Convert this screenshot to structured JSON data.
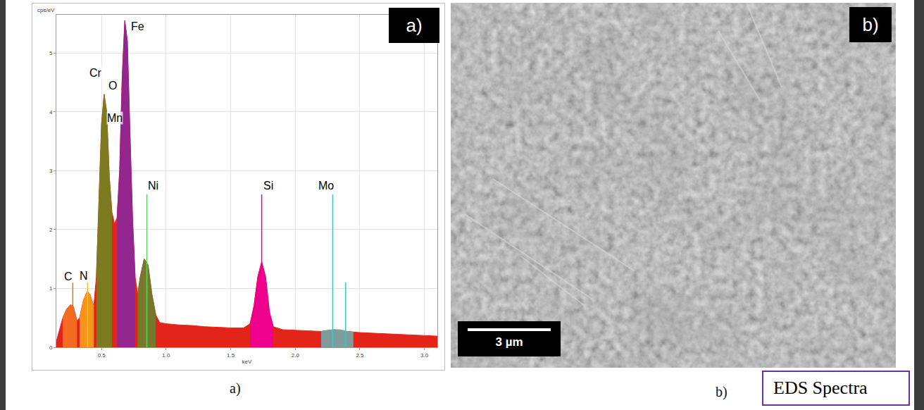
{
  "chart_data": {
    "type": "area",
    "x_title": "keV",
    "y_title": "cps/eV",
    "xlim": [
      0.15,
      3.1
    ],
    "ylim": [
      0,
      5.65
    ],
    "xticks": [
      0.5,
      {
        "value": 1,
        "label": "1.0"
      },
      1.5,
      {
        "value": 2,
        "label": "2.0"
      },
      2.5,
      {
        "value": 3,
        "label": "3.0"
      }
    ],
    "yticks": [
      0,
      1,
      2,
      3,
      4,
      5
    ],
    "grid": true,
    "tick_labels": true,
    "color": "#e3241b",
    "x": [
      0.15,
      0.18,
      0.2,
      0.23,
      0.26,
      0.28,
      0.31,
      0.33,
      0.36,
      0.39,
      0.41,
      0.44,
      0.46,
      0.48,
      0.5,
      0.52,
      0.54,
      0.56,
      0.58,
      0.6,
      0.62,
      0.64,
      0.66,
      0.68,
      0.7,
      0.72,
      0.74,
      0.76,
      0.78,
      0.8,
      0.83,
      0.86,
      0.89,
      0.92,
      0.95,
      1.0,
      1.1,
      1.2,
      1.3,
      1.4,
      1.5,
      1.6,
      1.65,
      1.68,
      1.71,
      1.74,
      1.77,
      1.8,
      1.83,
      1.9,
      2.0,
      2.1,
      2.2,
      2.3,
      2.4,
      2.5,
      2.6,
      2.7,
      2.8,
      2.9,
      3.0,
      3.1
    ],
    "values": [
      0.1,
      0.35,
      0.5,
      0.65,
      0.72,
      0.7,
      0.45,
      0.5,
      0.8,
      0.95,
      0.9,
      0.7,
      1.2,
      2.5,
      3.8,
      4.3,
      4.0,
      2.9,
      2.3,
      2.1,
      2.2,
      3.0,
      4.6,
      5.55,
      5.2,
      3.6,
      2.2,
      1.2,
      0.9,
      1.2,
      1.5,
      1.4,
      0.9,
      0.55,
      0.42,
      0.4,
      0.38,
      0.37,
      0.35,
      0.34,
      0.33,
      0.33,
      0.4,
      0.7,
      1.2,
      1.45,
      1.2,
      0.6,
      0.35,
      0.3,
      0.29,
      0.28,
      0.27,
      0.3,
      0.27,
      0.25,
      0.24,
      0.23,
      0.22,
      0.21,
      0.2,
      0.19
    ],
    "series": [
      {
        "color": "#f36c21",
        "x": [
          0.2,
          0.23,
          0.26,
          0.28,
          0.31
        ],
        "values": [
          0.5,
          0.65,
          0.72,
          0.7,
          0.45
        ]
      },
      {
        "color": "#f7941d",
        "x": [
          0.33,
          0.36,
          0.39,
          0.41,
          0.44
        ],
        "values": [
          0.5,
          0.8,
          0.95,
          0.9,
          0.7
        ]
      },
      {
        "color": "#7d7b1f",
        "x": [
          0.46,
          0.48,
          0.5,
          0.52,
          0.54,
          0.56,
          0.58
        ],
        "values": [
          1.2,
          2.5,
          3.8,
          4.3,
          4.0,
          2.9,
          2.3
        ]
      },
      {
        "color": "#93278f",
        "x": [
          0.62,
          0.64,
          0.66,
          0.68,
          0.7,
          0.72,
          0.74,
          0.76
        ],
        "values": [
          2.2,
          3.0,
          4.6,
          5.55,
          5.2,
          3.6,
          2.2,
          1.2
        ]
      },
      {
        "color": "#76782a",
        "x": [
          0.78,
          0.8,
          0.83,
          0.86,
          0.89,
          0.92
        ],
        "values": [
          0.9,
          1.2,
          1.5,
          1.4,
          0.9,
          0.55
        ]
      },
      {
        "color": "#ec008c",
        "x": [
          1.65,
          1.68,
          1.71,
          1.74,
          1.77,
          1.8,
          1.83
        ],
        "values": [
          0.4,
          0.7,
          1.2,
          1.45,
          1.2,
          0.6,
          0.35
        ]
      },
      {
        "color": "#7f9c9a",
        "x": [
          2.2,
          2.25,
          2.3,
          2.35,
          2.4,
          2.45
        ],
        "values": [
          0.27,
          0.29,
          0.3,
          0.3,
          0.27,
          0.26
        ]
      }
    ],
    "lines": [
      {
        "x": 0.277,
        "y": 1.1,
        "color": "#f36c21"
      },
      {
        "x": 0.392,
        "y": 1.1,
        "color": "#f7c21d"
      },
      {
        "x": 0.851,
        "y": 2.6,
        "color": "#5cd65c"
      },
      {
        "x": 1.74,
        "y": 2.6,
        "color": "#ec008c"
      },
      {
        "x": 2.29,
        "y": 2.6,
        "color": "#3cc8c0"
      },
      {
        "x": 2.39,
        "y": 1.1,
        "color": "#3cc8c0"
      }
    ],
    "annotations": [
      {
        "text": "C",
        "x": 0.24,
        "y": 1.2
      },
      {
        "text": "N",
        "x": 0.36,
        "y": 1.22
      },
      {
        "text": "Cr",
        "x": 0.455,
        "y": 4.66
      },
      {
        "text": "O",
        "x": 0.585,
        "y": 4.45
      },
      {
        "text": "Mn",
        "x": 0.6,
        "y": 3.9
      },
      {
        "text": "Fe",
        "x": 0.78,
        "y": 5.45
      },
      {
        "text": "Ni",
        "x": 0.9,
        "y": 2.75
      },
      {
        "text": "Si",
        "x": 1.79,
        "y": 2.75
      },
      {
        "text": "Mo",
        "x": 2.24,
        "y": 2.75
      }
    ]
  },
  "panel_a": {
    "tag": "a)",
    "caption": "a)"
  },
  "panel_b": {
    "tag": "b)",
    "caption": "b)",
    "scale_bar": "3 µm"
  },
  "caption_box": "EDS Spectra"
}
